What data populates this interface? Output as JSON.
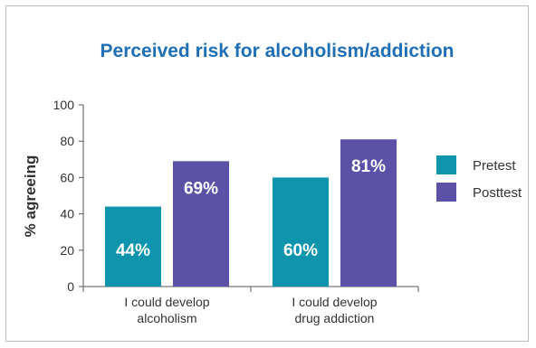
{
  "chart_data": {
    "type": "bar",
    "title": "Perceived risk for alcoholism/addiction",
    "ylabel": "% agreeing",
    "xlabel": "",
    "ylim": [
      0,
      100
    ],
    "yticks": [
      0,
      20,
      40,
      60,
      80,
      100
    ],
    "categories": [
      {
        "line1": "I could develop",
        "line2": "alcoholism"
      },
      {
        "line1": "I could develop",
        "line2": "drug addiction"
      }
    ],
    "series": [
      {
        "name": "Pretest",
        "color": "#0e95ad",
        "values": [
          44,
          60
        ],
        "labels": [
          "44%",
          "60%"
        ]
      },
      {
        "name": "Posttest",
        "color": "#5b52a8",
        "values": [
          69,
          81
        ],
        "labels": [
          "69%",
          "81%"
        ]
      }
    ],
    "legend": "right",
    "grid": false,
    "title_color": "#1f6fb5"
  }
}
